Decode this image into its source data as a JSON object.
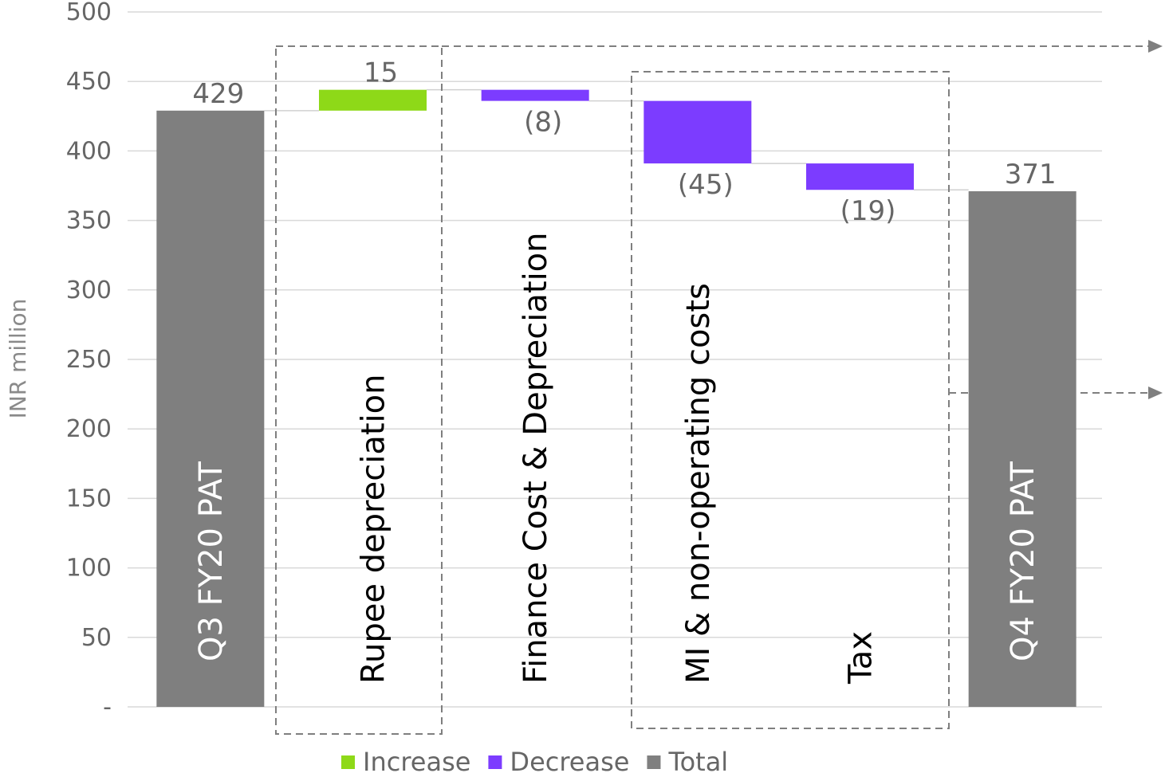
{
  "chart_data": {
    "type": "bar",
    "subtype": "waterfall",
    "ylabel": "INR million",
    "ylim": [
      0,
      500
    ],
    "yticks": [
      "-",
      "50",
      "100",
      "150",
      "200",
      "250",
      "300",
      "350",
      "400",
      "450",
      "500"
    ],
    "grid": true,
    "legend_position": "bottom",
    "legend": [
      {
        "label": "Increase",
        "color": "#8ed918"
      },
      {
        "label": "Decrease",
        "color": "#7c3cff"
      },
      {
        "label": "Total",
        "color": "#7f7f7f"
      }
    ],
    "steps": [
      {
        "category": "Q3 FY20 PAT",
        "kind": "total",
        "value": 429,
        "label": "429"
      },
      {
        "category": "Rupee depreciation",
        "kind": "increase",
        "value": 15,
        "label": "15"
      },
      {
        "category": "Finance Cost & Depreciation",
        "kind": "decrease",
        "value": -8,
        "label": "(8)"
      },
      {
        "category": "MI & non-operating costs",
        "kind": "decrease",
        "value": -45,
        "label": "(45)"
      },
      {
        "category": "Tax",
        "kind": "decrease",
        "value": -19,
        "label": "(19)"
      },
      {
        "category": "Q4 FY20  PAT",
        "kind": "total",
        "value": 371,
        "label": "371"
      }
    ],
    "colors": {
      "increase": "#8ed918",
      "decrease": "#7c3cff",
      "total": "#7f7f7f"
    }
  }
}
